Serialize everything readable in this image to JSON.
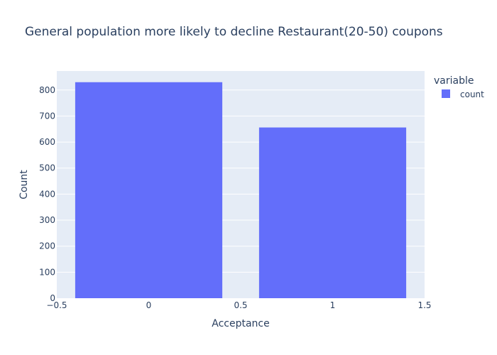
{
  "chart_data": {
    "type": "bar",
    "title": "General population more likely to decline Restaurant(20-50) coupons",
    "xlabel": "Acceptance",
    "ylabel": "Count",
    "x": [
      0,
      1
    ],
    "series": [
      {
        "name": "count",
        "values": [
          830,
          656
        ],
        "color": "#636efa"
      }
    ],
    "xlim": [
      -0.5,
      1.5
    ],
    "ylim": [
      0,
      873
    ],
    "xticks": [
      -0.5,
      0,
      0.5,
      1,
      1.5
    ],
    "xtick_labels": [
      "−0.5",
      "0",
      "0.5",
      "1",
      "1.5"
    ],
    "yticks": [
      0,
      100,
      200,
      300,
      400,
      500,
      600,
      700,
      800
    ],
    "bar_width": 0.8,
    "grid": true,
    "legend": {
      "title": "variable",
      "placement": "right"
    },
    "plot_bg": "#e5ecf6"
  }
}
